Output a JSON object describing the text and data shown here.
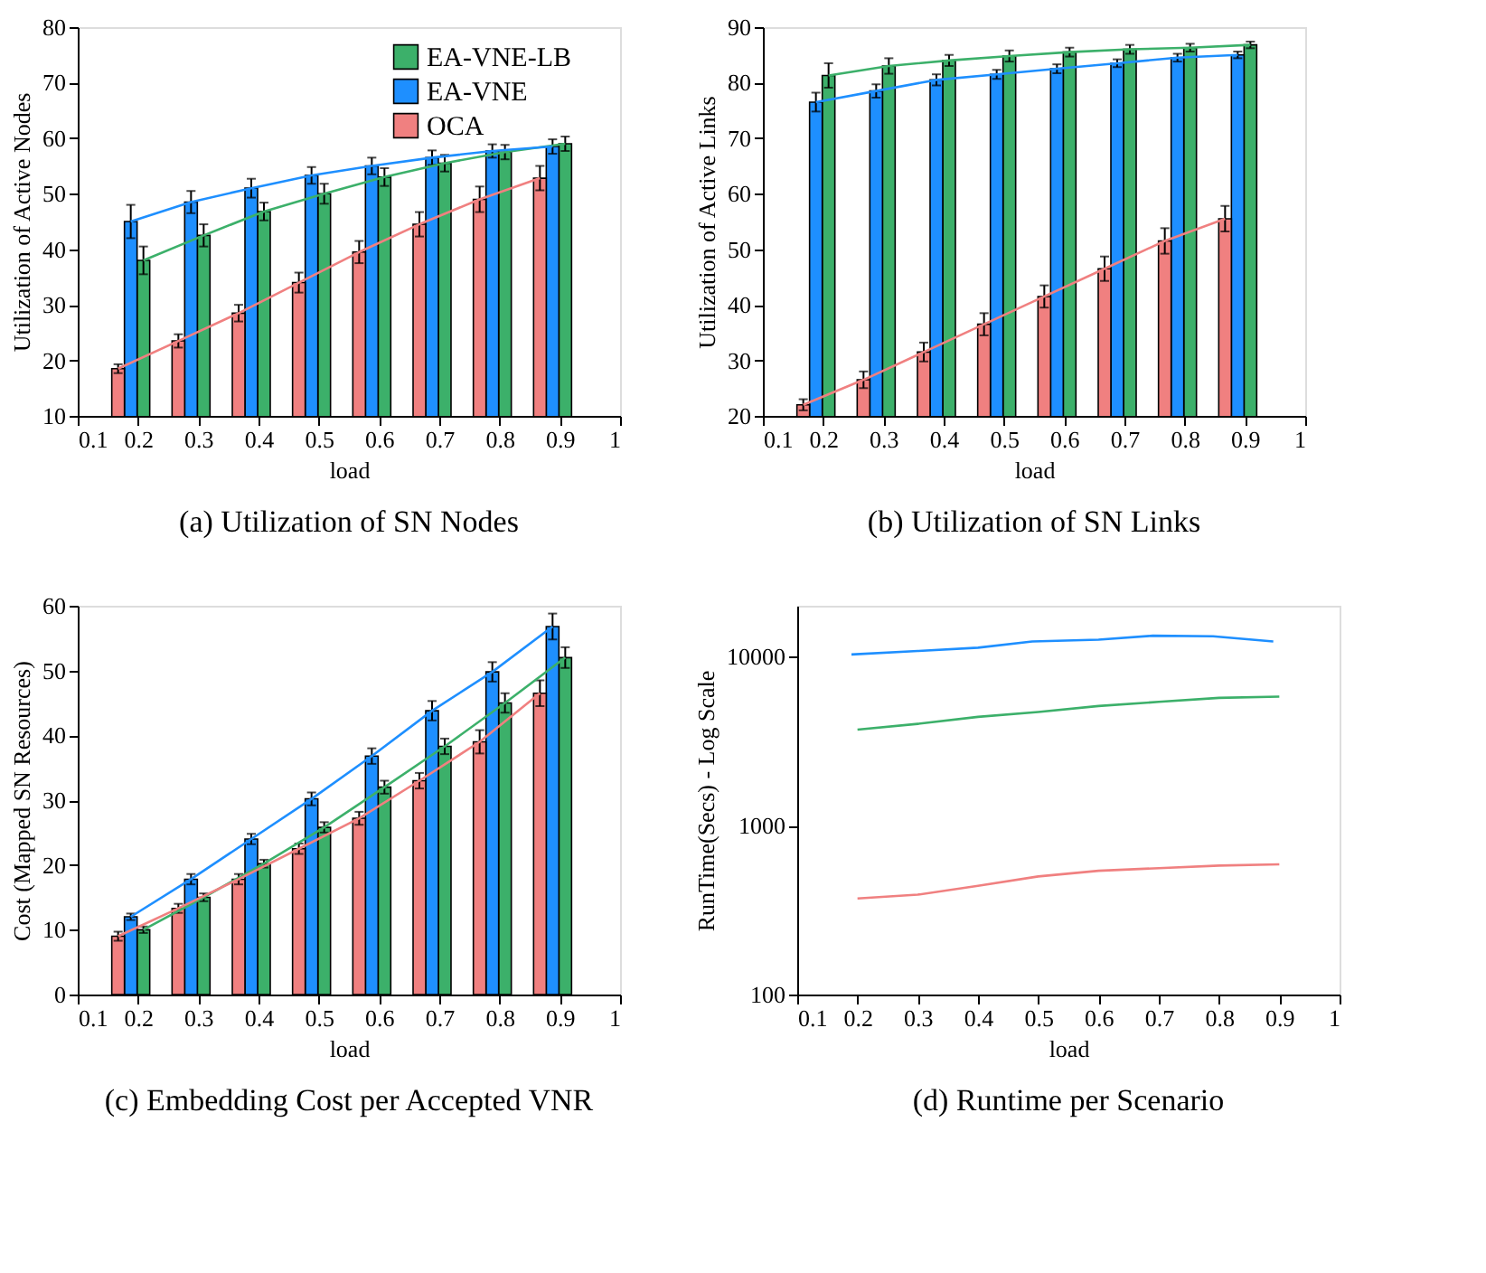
{
  "chart_data": [
    {
      "type": "bar",
      "title": "(a) Utilization of SN Nodes",
      "xlabel": "load",
      "ylabel": "Utilization of Active Nodes",
      "xlim": [
        0.1,
        1
      ],
      "xticks": [
        0.1,
        0.2,
        0.3,
        0.4,
        0.5,
        0.6,
        0.7,
        0.8,
        0.9,
        1
      ],
      "ylim": [
        10,
        80
      ],
      "yticks": [
        10,
        20,
        30,
        40,
        50,
        60,
        70,
        80
      ],
      "legend": "top right",
      "series": [
        {
          "name": "EA-VNE-LB",
          "type": "bar",
          "color": "#3cb06a",
          "x": [
            0.209,
            0.309,
            0.409,
            0.509,
            0.609,
            0.709,
            0.809,
            0.909
          ],
          "values": [
            38,
            42.5,
            46.8,
            50,
            53,
            55.5,
            57.5,
            59
          ],
          "errors": [
            2.5,
            2,
            1.6,
            1.8,
            1.6,
            1.5,
            1.3,
            1.3
          ]
        },
        {
          "name": "EA-VNE",
          "type": "bar",
          "color": "#1e8fff",
          "x": [
            0.188,
            0.288,
            0.388,
            0.488,
            0.588,
            0.688,
            0.788,
            0.888
          ],
          "values": [
            45,
            48.5,
            51,
            53.3,
            55,
            56.5,
            57.7,
            58.5
          ],
          "errors": [
            3,
            2,
            1.7,
            1.5,
            1.5,
            1.3,
            1.2,
            1.3
          ]
        },
        {
          "name": "OCA",
          "type": "bar",
          "color": "#f08080",
          "x": [
            0.167,
            0.267,
            0.367,
            0.467,
            0.567,
            0.667,
            0.767,
            0.867
          ],
          "values": [
            18.5,
            23.5,
            28.5,
            34,
            39.5,
            44.5,
            49,
            52.8
          ],
          "errors": [
            0.8,
            1.2,
            1.5,
            1.8,
            2,
            2.2,
            2.3,
            2.2
          ]
        },
        {
          "type": "line",
          "color": "#3cb06a",
          "x": [
            0.209,
            0.309,
            0.409,
            0.509,
            0.609,
            0.709,
            0.809,
            0.909
          ],
          "values": [
            38,
            42.5,
            46.8,
            50,
            53,
            55.5,
            57.5,
            59
          ]
        },
        {
          "type": "line",
          "color": "#1e8fff",
          "x": [
            0.188,
            0.288,
            0.388,
            0.488,
            0.588,
            0.688,
            0.788,
            0.888
          ],
          "values": [
            45,
            48.5,
            51,
            53.3,
            55,
            56.5,
            57.7,
            58.5
          ]
        },
        {
          "type": "line",
          "color": "#f08080",
          "x": [
            0.167,
            0.267,
            0.367,
            0.467,
            0.567,
            0.667,
            0.767,
            0.867
          ],
          "values": [
            18.5,
            23.5,
            28.5,
            34,
            39.5,
            44.5,
            49,
            52.8
          ]
        }
      ]
    },
    {
      "type": "bar",
      "title": "(b) Utilization of SN Links",
      "xlabel": "load",
      "ylabel": "Utilization of Active Links",
      "xlim": [
        0.1,
        1
      ],
      "xticks": [
        0.1,
        0.2,
        0.3,
        0.4,
        0.5,
        0.6,
        0.7,
        0.8,
        0.9,
        1
      ],
      "ylim": [
        20,
        90
      ],
      "yticks": [
        20,
        30,
        40,
        50,
        60,
        70,
        80,
        90
      ],
      "series": [
        {
          "type": "bar",
          "color": "#3cb06a",
          "x": [
            0.209,
            0.309,
            0.409,
            0.509,
            0.609,
            0.709,
            0.809,
            0.909
          ],
          "values": [
            81.3,
            83,
            84,
            84.8,
            85.5,
            86,
            86.3,
            86.8
          ],
          "errors": [
            2.2,
            1.4,
            1,
            1,
            0.8,
            0.8,
            0.7,
            0.6
          ]
        },
        {
          "type": "bar",
          "color": "#1e8fff",
          "x": [
            0.188,
            0.288,
            0.388,
            0.488,
            0.588,
            0.688,
            0.788,
            0.888
          ],
          "values": [
            76.5,
            78.5,
            80.5,
            81.5,
            82.5,
            83.5,
            84.5,
            85
          ],
          "errors": [
            1.7,
            1.2,
            1,
            0.8,
            0.8,
            0.7,
            0.7,
            0.6
          ]
        },
        {
          "type": "bar",
          "color": "#f08080",
          "x": [
            0.167,
            0.267,
            0.367,
            0.467,
            0.567,
            0.667,
            0.767,
            0.867
          ],
          "values": [
            22,
            26.5,
            31.5,
            36.5,
            41.5,
            46.5,
            51.5,
            55.5
          ],
          "errors": [
            1,
            1.5,
            1.7,
            2,
            2,
            2.2,
            2.3,
            2.3
          ]
        },
        {
          "type": "line",
          "color": "#3cb06a",
          "x": [
            0.209,
            0.309,
            0.409,
            0.509,
            0.609,
            0.709,
            0.809,
            0.909
          ],
          "values": [
            81.3,
            83,
            84,
            84.8,
            85.5,
            86,
            86.3,
            86.8
          ]
        },
        {
          "type": "line",
          "color": "#1e8fff",
          "x": [
            0.188,
            0.288,
            0.388,
            0.488,
            0.588,
            0.688,
            0.788,
            0.888
          ],
          "values": [
            76.5,
            78.5,
            80.5,
            81.5,
            82.5,
            83.5,
            84.5,
            85
          ]
        },
        {
          "type": "line",
          "color": "#f08080",
          "x": [
            0.167,
            0.267,
            0.367,
            0.467,
            0.567,
            0.667,
            0.767,
            0.867
          ],
          "values": [
            22,
            26.5,
            31.5,
            36.5,
            41.5,
            46.5,
            51.5,
            55.5
          ]
        }
      ]
    },
    {
      "type": "bar",
      "title": "(c) Embedding Cost per Accepted VNR",
      "xlabel": "load",
      "ylabel": "Cost (Mapped SN Resources)",
      "xlim": [
        0.1,
        1
      ],
      "xticks": [
        0.1,
        0.2,
        0.3,
        0.4,
        0.5,
        0.6,
        0.7,
        0.8,
        0.9,
        1
      ],
      "ylim": [
        0,
        60
      ],
      "yticks": [
        0,
        10,
        20,
        30,
        40,
        50,
        60
      ],
      "series": [
        {
          "type": "bar",
          "color": "#3cb06a",
          "x": [
            0.209,
            0.309,
            0.409,
            0.509,
            0.609,
            0.709,
            0.809,
            0.909
          ],
          "values": [
            10,
            15,
            20.2,
            25.8,
            32,
            38.3,
            45,
            52
          ],
          "errors": [
            0.5,
            0.6,
            0.6,
            0.8,
            1,
            1.2,
            1.5,
            1.6
          ]
        },
        {
          "type": "bar",
          "color": "#1e8fff",
          "x": [
            0.188,
            0.288,
            0.388,
            0.488,
            0.588,
            0.688,
            0.788,
            0.888
          ],
          "values": [
            12,
            17.8,
            24,
            30.2,
            36.8,
            43.8,
            49.8,
            56.8
          ],
          "errors": [
            0.5,
            0.8,
            0.8,
            1,
            1.2,
            1.5,
            1.5,
            2
          ]
        },
        {
          "type": "bar",
          "color": "#f08080",
          "x": [
            0.167,
            0.267,
            0.367,
            0.467,
            0.567,
            0.667,
            0.767,
            0.867
          ],
          "values": [
            9,
            13.3,
            17.8,
            22.5,
            27.2,
            33,
            39,
            46.5
          ],
          "errors": [
            0.7,
            0.7,
            0.8,
            0.8,
            1,
            1.2,
            1.8,
            2
          ]
        },
        {
          "type": "line",
          "color": "#3cb06a",
          "x": [
            0.209,
            0.309,
            0.409,
            0.509,
            0.609,
            0.709,
            0.809,
            0.909
          ],
          "values": [
            10,
            15,
            20.2,
            25.8,
            32,
            38.3,
            45,
            52
          ]
        },
        {
          "type": "line",
          "color": "#1e8fff",
          "x": [
            0.188,
            0.288,
            0.388,
            0.488,
            0.588,
            0.688,
            0.788,
            0.888
          ],
          "values": [
            12,
            17.8,
            24,
            30.2,
            36.8,
            43.8,
            49.8,
            56.8
          ]
        },
        {
          "type": "line",
          "color": "#f08080",
          "x": [
            0.167,
            0.267,
            0.367,
            0.467,
            0.567,
            0.667,
            0.767,
            0.867
          ],
          "values": [
            9,
            13.3,
            17.8,
            22.5,
            27.2,
            33,
            39,
            46.5
          ]
        }
      ]
    },
    {
      "type": "line",
      "title": "(d) Runtime per Scenario",
      "xlabel": "load",
      "ylabel": "RunTime(Secs) - Log Scale",
      "log": "y",
      "xlim": [
        0.1,
        1
      ],
      "xticks": [
        0.1,
        0.2,
        0.3,
        0.4,
        0.5,
        0.6,
        0.7,
        0.8,
        0.9,
        1
      ],
      "ylim": [
        100,
        20000
      ],
      "yticks": [
        100,
        1000,
        10000
      ],
      "series": [
        {
          "color": "#1e8fff",
          "x": [
            0.19,
            0.3,
            0.4,
            0.49,
            0.6,
            0.69,
            0.79,
            0.89
          ],
          "values": [
            10300,
            10800,
            11300,
            12300,
            12600,
            13300,
            13200,
            12300
          ]
        },
        {
          "color": "#3cb06a",
          "x": [
            0.2,
            0.3,
            0.4,
            0.5,
            0.6,
            0.7,
            0.8,
            0.9
          ],
          "values": [
            3700,
            4000,
            4400,
            4700,
            5100,
            5400,
            5700,
            5800
          ]
        },
        {
          "color": "#f08080",
          "x": [
            0.2,
            0.3,
            0.4,
            0.5,
            0.6,
            0.7,
            0.8,
            0.9
          ],
          "values": [
            370,
            390,
            440,
            500,
            540,
            560,
            580,
            590
          ]
        }
      ]
    }
  ]
}
